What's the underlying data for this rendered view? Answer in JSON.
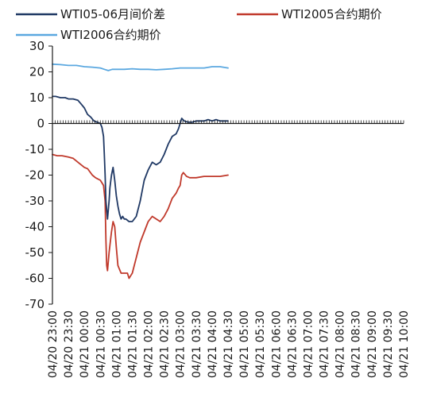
{
  "chart_data": {
    "type": "line",
    "title": "",
    "xlabel": "",
    "ylabel": "",
    "ylim": [
      -70,
      30
    ],
    "yticks": [
      30,
      20,
      10,
      0,
      -10,
      -20,
      -30,
      -40,
      -50,
      -60,
      -70
    ],
    "grid": false,
    "legend": "top",
    "x_tick_labels": [
      "04/20 23:00",
      "04/20 23:30",
      "04/21 00:00",
      "04/21 00:30",
      "04/21 01:00",
      "04/21 01:30",
      "04/21 02:00",
      "04/21 02:30",
      "04/21 03:00",
      "04/21 03:30",
      "04/21 04:00",
      "04/21 04:30",
      "04/21 05:00",
      "04/21 05:30",
      "04/21 06:00",
      "04/21 06:30",
      "04/21 07:00",
      "04/21 07:30",
      "04/21 08:00",
      "04/21 08:30",
      "04/21 09:00",
      "04/21 09:30",
      "04/21 10:00"
    ],
    "x_unit_note": "x values are hours elapsed from 04/20 23:00",
    "series": [
      {
        "name": "WTI05-06月间价差",
        "color": "#1f3864",
        "x": [
          0,
          0.2,
          0.5,
          0.8,
          1.0,
          1.3,
          1.6,
          1.8,
          2.0,
          2.2,
          2.4,
          2.6,
          2.8,
          3.0,
          3.1,
          3.2,
          3.25,
          3.3,
          3.35,
          3.45,
          3.55,
          3.6,
          3.7,
          3.8,
          3.9,
          4.0,
          4.1,
          4.2,
          4.3,
          4.4,
          4.5,
          4.6,
          4.8,
          5.0,
          5.25,
          5.5,
          5.75,
          6.0,
          6.25,
          6.5,
          6.75,
          7.0,
          7.25,
          7.5,
          7.75,
          7.9,
          8.0,
          8.1,
          8.25,
          8.5,
          8.75,
          9.0,
          9.25,
          9.5,
          9.75,
          10.0,
          10.25,
          10.5,
          10.75,
          11.0
        ],
        "y": [
          10.5,
          10.5,
          10,
          10,
          9.5,
          9.5,
          9,
          7.5,
          6,
          3.5,
          2.5,
          1,
          0.5,
          0,
          -1.5,
          -5,
          -12,
          -20,
          -30,
          -37,
          -30,
          -25,
          -20,
          -17,
          -22,
          -28,
          -32,
          -35,
          -37,
          -36,
          -37,
          -37,
          -38,
          -38,
          -36,
          -30,
          -22,
          -18,
          -15,
          -16,
          -15,
          -12,
          -8,
          -5,
          -4,
          -2,
          0,
          2,
          1,
          0.5,
          0.5,
          1,
          1,
          1,
          1.5,
          1,
          1.5,
          1,
          1,
          1
        ]
      },
      {
        "name": "WTI2005合约期价",
        "color": "#c0392b",
        "x": [
          0,
          0.3,
          0.6,
          1.0,
          1.3,
          1.6,
          2.0,
          2.2,
          2.5,
          2.7,
          3.0,
          3.2,
          3.3,
          3.35,
          3.4,
          3.45,
          3.55,
          3.7,
          3.8,
          3.9,
          4.0,
          4.1,
          4.3,
          4.5,
          4.7,
          4.8,
          4.9,
          5.0,
          5.25,
          5.5,
          5.75,
          6.0,
          6.25,
          6.5,
          6.75,
          7.0,
          7.25,
          7.5,
          7.75,
          7.9,
          8.0,
          8.1,
          8.2,
          8.4,
          8.6,
          9.0,
          9.5,
          10.0,
          10.5,
          11.0
        ],
        "y": [
          -12,
          -12.5,
          -12.5,
          -13,
          -13.5,
          -15,
          -17,
          -17.5,
          -20,
          -21,
          -22,
          -24,
          -30,
          -45,
          -55,
          -57,
          -50,
          -42,
          -38,
          -40,
          -48,
          -55,
          -58,
          -58,
          -58,
          -60,
          -59,
          -58,
          -52,
          -46,
          -42,
          -38,
          -36,
          -37,
          -38,
          -36,
          -33,
          -29,
          -27,
          -25,
          -24,
          -20,
          -19,
          -20.5,
          -21,
          -21,
          -20.5,
          -20.5,
          -20.5,
          -20
        ]
      },
      {
        "name": "WTI2006合约期价",
        "color": "#5ba8e0",
        "x": [
          0,
          0.5,
          1.0,
          1.5,
          2.0,
          2.5,
          3.0,
          3.25,
          3.5,
          3.75,
          4.0,
          4.5,
          5.0,
          5.5,
          6.0,
          6.5,
          7.0,
          7.5,
          8.0,
          8.5,
          9.0,
          9.5,
          10.0,
          10.5,
          11.0
        ],
        "y": [
          23,
          22.8,
          22.5,
          22.5,
          22,
          21.8,
          21.5,
          21,
          20.5,
          21,
          21,
          21,
          21.2,
          21,
          21,
          20.8,
          21,
          21.2,
          21.5,
          21.5,
          21.5,
          21.5,
          22,
          22,
          21.5
        ]
      }
    ]
  }
}
